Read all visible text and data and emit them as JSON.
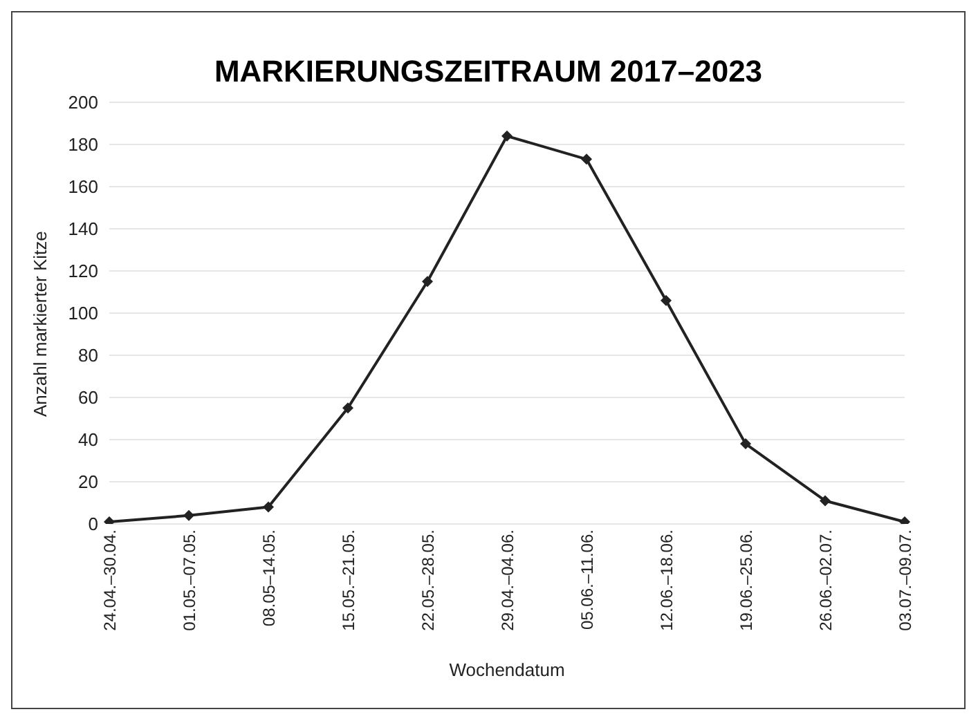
{
  "chart_data": {
    "type": "line",
    "title": "MARKIERUNGSZEITRAUM 2017–2023",
    "xlabel": "Wochendatum",
    "ylabel": "Anzahl markierter Kitze",
    "categories": [
      "24.04.–30.04.",
      "01.05.–07.05.",
      "08.05–14.05.",
      "15.05.–21.05.",
      "22.05.–28.05.",
      "29.04.–04.06.",
      "05.06.–11.06.",
      "12.06.–18.06.",
      "19.06.–25.06.",
      "26.06.–02.07.",
      "03.07.–09.07."
    ],
    "series": [
      {
        "color": "#222222",
        "values": [
          1,
          4,
          8,
          55,
          115,
          184,
          173,
          106,
          38,
          11,
          1
        ]
      }
    ],
    "ylim": [
      0,
      200
    ],
    "yticks": [
      0,
      20,
      40,
      60,
      80,
      100,
      120,
      140,
      160,
      180,
      200
    ],
    "grid": "y",
    "marker": "diamond",
    "line_style": "solid",
    "legend": false
  }
}
